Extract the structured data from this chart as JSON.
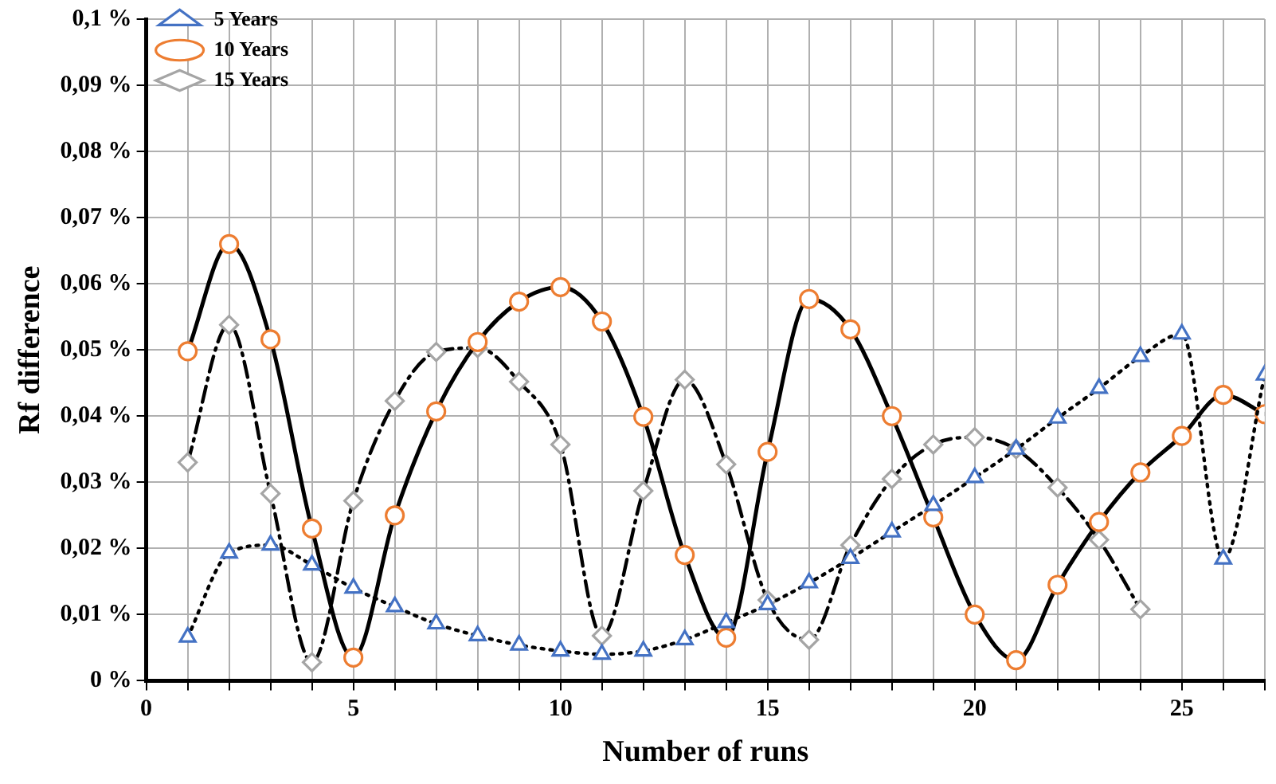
{
  "chart_data": {
    "type": "line",
    "xlabel": "Number of runs",
    "ylabel": "Rf difference",
    "x": [
      1,
      2,
      3,
      4,
      5,
      6,
      7,
      8,
      9,
      10,
      11,
      12,
      13,
      14,
      15,
      16,
      17,
      18,
      19,
      20,
      21,
      22,
      23,
      24,
      25,
      26,
      27
    ],
    "series": [
      {
        "name": "5 Years",
        "color": "#4472c4",
        "marker": "triangle",
        "line_style": "dotted",
        "values": [
          0.0066,
          0.0193,
          0.0205,
          0.0175,
          0.014,
          0.0112,
          0.0086,
          0.0068,
          0.0054,
          0.0045,
          0.004,
          0.0045,
          0.0062,
          0.0088,
          0.0115,
          0.0148,
          0.0185,
          0.0225,
          0.0265,
          0.0307,
          0.035,
          0.0397,
          0.0442,
          0.049,
          0.0524,
          0.0184,
          0.0462
        ]
      },
      {
        "name": "10 Years",
        "color": "#ed7d31",
        "marker": "circle",
        "line_style": "solid",
        "values": [
          0.0498,
          0.066,
          0.0516,
          0.023,
          0.0035,
          0.025,
          0.0407,
          0.0512,
          0.0573,
          0.0595,
          0.0543,
          0.0399,
          0.019,
          0.0065,
          0.0346,
          0.0577,
          0.0531,
          0.04,
          0.0247,
          0.01,
          0.0031,
          0.0145,
          0.024,
          0.0315,
          0.037,
          0.0432,
          0.0403
        ]
      },
      {
        "name": "15 Years",
        "color": "#a5a5a5",
        "marker": "diamond",
        "line_style": "dashdot",
        "values": [
          0.033,
          0.0538,
          0.0283,
          0.0028,
          0.0272,
          0.0423,
          0.0497,
          0.0503,
          0.0452,
          0.0357,
          0.0068,
          0.0287,
          0.0455,
          0.0327,
          0.0122,
          0.0062,
          0.0205,
          0.0305,
          0.0357,
          0.0368,
          0.035,
          0.0292,
          0.0213,
          0.0108,
          null,
          null,
          null
        ]
      }
    ],
    "xlim": [
      0,
      27
    ],
    "xticks": [
      0,
      {
        "value": 1,
        "label": null
      },
      {
        "value": 2,
        "label": null
      },
      {
        "value": 3,
        "label": null
      },
      {
        "value": 4,
        "label": null
      },
      5,
      {
        "value": 6,
        "label": null
      },
      {
        "value": 7,
        "label": null
      },
      {
        "value": 8,
        "label": null
      },
      {
        "value": 9,
        "label": null
      },
      10,
      {
        "value": 11,
        "label": null
      },
      {
        "value": 12,
        "label": null
      },
      {
        "value": 13,
        "label": null
      },
      {
        "value": 14,
        "label": null
      },
      15,
      {
        "value": 16,
        "label": null
      },
      {
        "value": 17,
        "label": null
      },
      {
        "value": 18,
        "label": null
      },
      {
        "value": 19,
        "label": null
      },
      20,
      {
        "value": 21,
        "label": null
      },
      {
        "value": 22,
        "label": null
      },
      {
        "value": 23,
        "label": null
      },
      {
        "value": 24,
        "label": null
      },
      25,
      {
        "value": 26,
        "label": null
      },
      {
        "value": 27,
        "label": null
      }
    ],
    "ylim": [
      0,
      0.1
    ],
    "yticks": [
      {
        "value": 0,
        "label": "0 %"
      },
      {
        "value": 0.01,
        "label": "0,01 %"
      },
      {
        "value": 0.02,
        "label": "0,02 %"
      },
      {
        "value": 0.03,
        "label": "0,03 %"
      },
      {
        "value": 0.04,
        "label": "0,04 %"
      },
      {
        "value": 0.05,
        "label": "0,05 %"
      },
      {
        "value": 0.06,
        "label": "0,06 %"
      },
      {
        "value": 0.07,
        "label": "0,07 %"
      },
      {
        "value": 0.08,
        "label": "0,08 %"
      },
      {
        "value": 0.09,
        "label": "0,09 %"
      },
      {
        "value": 0.1,
        "label": "0,1 %"
      }
    ],
    "grid": true,
    "legend": "top left"
  }
}
